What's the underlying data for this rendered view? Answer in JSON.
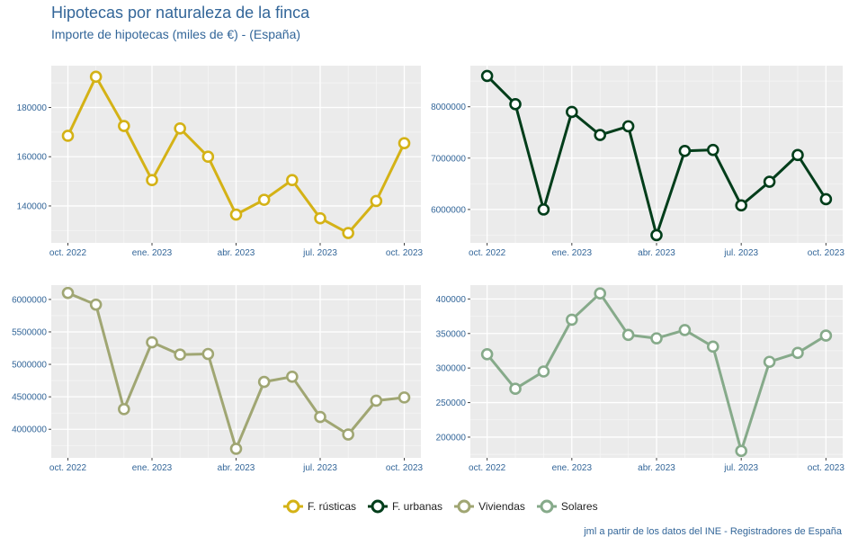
{
  "title": "Hipotecas por naturaleza de la finca",
  "subtitle": "Importe de hipotecas (miles de €) - (España)",
  "caption": "jml a partir de los datos del INE - Registradores de España",
  "chart_data": {
    "type": "line",
    "title": "Hipotecas por naturaleza de la finca",
    "subtitle": "Importe de hipotecas (miles de €) - (España)",
    "x": [
      "2022-10",
      "2022-11",
      "2022-12",
      "2023-01",
      "2023-02",
      "2023-03",
      "2023-04",
      "2023-05",
      "2023-06",
      "2023-07",
      "2023-08",
      "2023-09",
      "2023-10"
    ],
    "x_tick_labels": [
      "oct. 2022",
      "ene. 2023",
      "abr. 2023",
      "jul. 2023",
      "oct. 2023"
    ],
    "x_tick_index": [
      0,
      3,
      6,
      9,
      12
    ],
    "legend_position": "bottom",
    "series": [
      {
        "name": "F. rústicas",
        "color": "#d4b216",
        "values": [
          168500,
          192500,
          172500,
          150500,
          171500,
          160000,
          136500,
          142500,
          150500,
          135000,
          129000,
          142000,
          165500
        ],
        "ylim": [
          125000,
          197000
        ],
        "y_ticks": [
          140000,
          160000,
          180000
        ]
      },
      {
        "name": "F. urbanas",
        "color": "#003d1a",
        "values": [
          8600000,
          8050000,
          6000000,
          7900000,
          7450000,
          7620000,
          5500000,
          7140000,
          7160000,
          6080000,
          6540000,
          7060000,
          6200000
        ],
        "ylim": [
          5350000,
          8800000
        ],
        "y_ticks": [
          6000000,
          7000000,
          8000000
        ]
      },
      {
        "name": "Viviendas",
        "color": "#a0a673",
        "values": [
          6100000,
          5920000,
          4310000,
          5340000,
          5150000,
          5160000,
          3700000,
          4730000,
          4810000,
          4190000,
          3920000,
          4440000,
          4490000
        ],
        "ylim": [
          3560000,
          6220000
        ],
        "y_ticks": [
          4000000,
          4500000,
          5000000,
          5500000,
          6000000
        ]
      },
      {
        "name": "Solares",
        "color": "#86aa8a",
        "values": [
          320000,
          270000,
          295000,
          370000,
          408000,
          348000,
          343000,
          355000,
          331000,
          180000,
          309000,
          322000,
          347000
        ],
        "ylim": [
          170000,
          420000
        ],
        "y_ticks": [
          200000,
          250000,
          300000,
          350000,
          400000
        ]
      }
    ]
  }
}
